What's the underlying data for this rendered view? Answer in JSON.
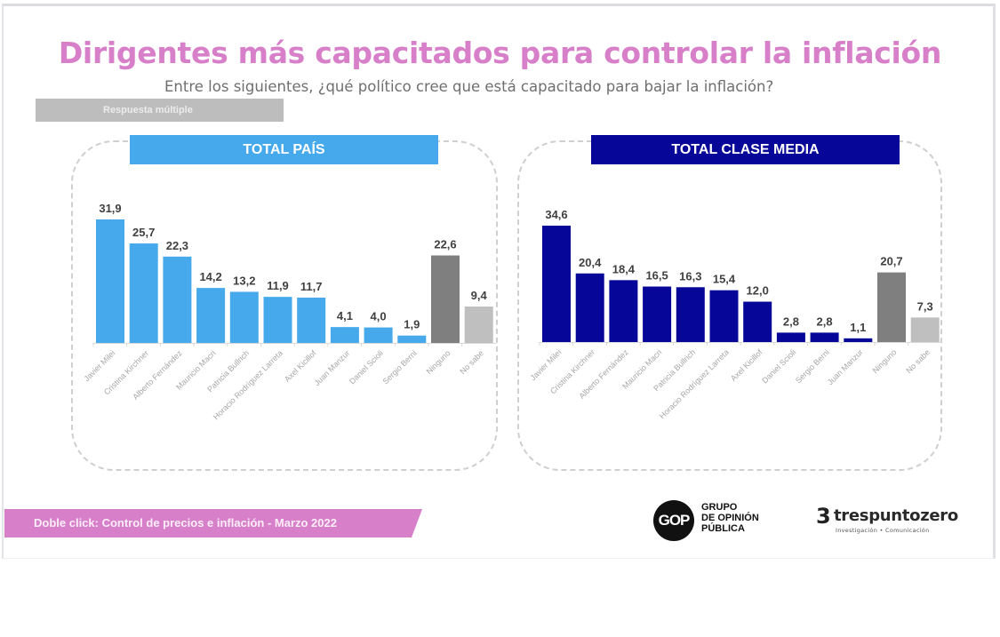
{
  "title": "Dirigentes más capacitados para controlar la inflación",
  "subtitle": "Entre los siguientes, ¿qué político cree que está capacitado para bajar la inflación?",
  "tag": "Respuesta múltiple",
  "footer": "Doble click: Control de precios e inflación -  Marzo 2022",
  "logos": {
    "gop_mark": "GOP",
    "gop_lines": [
      "GRUPO",
      "DE OPINIÓN",
      "PÚBLICA"
    ],
    "tpz_mark": "3",
    "tpz_name": "trespuntozero",
    "tpz_sub": "Investigación • Comunicación"
  },
  "colors": {
    "title": "#d77fc9",
    "footer_band": "#d77fc9",
    "pais_bar": "#45a9eb",
    "clase_media_bar": "#060698",
    "ninguno_bar": "#7f7f7f",
    "no_sabe_bar": "#bfbfbf",
    "value_label": "#404040",
    "category_label": "#a6a6a6"
  },
  "chart_data": [
    {
      "type": "bar",
      "title": "TOTAL PAÍS",
      "xlabel": "",
      "ylabel": "",
      "ylim": [
        0,
        31.9
      ],
      "grid": false,
      "legend": "none",
      "categories": [
        "Javier Milei",
        "Cristina Kirchner",
        "Alberto Fernández",
        "Mauricio Macri",
        "Patricia Bullrich",
        "Horacio Rodríguez Larreta",
        "Axel Kicillof",
        "Juan Manzur",
        "Daniel Scioli",
        "Sergio Berni",
        "Ninguno",
        "No sabe"
      ],
      "values": [
        31.9,
        25.7,
        22.3,
        14.2,
        13.2,
        11.9,
        11.7,
        4.1,
        4.0,
        1.9,
        22.6,
        9.4
      ],
      "value_labels": [
        "31,9",
        "25,7",
        "22,3",
        "14,2",
        "13,2",
        "11,9",
        "11,7",
        "4,1",
        "4,0",
        "1,9",
        "22,6",
        "9,4"
      ],
      "bar_colors": [
        "#45a9eb",
        "#45a9eb",
        "#45a9eb",
        "#45a9eb",
        "#45a9eb",
        "#45a9eb",
        "#45a9eb",
        "#45a9eb",
        "#45a9eb",
        "#45a9eb",
        "#7f7f7f",
        "#bfbfbf"
      ]
    },
    {
      "type": "bar",
      "title": "TOTAL CLASE MEDIA",
      "xlabel": "",
      "ylabel": "",
      "ylim": [
        0,
        34.6
      ],
      "grid": false,
      "legend": "none",
      "categories": [
        "Javier Milei",
        "Cristina Kirchner",
        "Alberto Fernández",
        "Mauricio Macri",
        "Patricia Bullrich",
        "Horacio Rodríguez Larreta",
        "Axel Kicillof",
        "Daniel Scioli",
        "Sergio Berni",
        "Juan Manzur",
        "Ninguno",
        "No sabe"
      ],
      "values": [
        34.6,
        20.4,
        18.4,
        16.5,
        16.3,
        15.4,
        12.0,
        2.8,
        2.8,
        1.1,
        20.7,
        7.3
      ],
      "value_labels": [
        "34,6",
        "20,4",
        "18,4",
        "16,5",
        "16,3",
        "15,4",
        "12,0",
        "2,8",
        "2,8",
        "1,1",
        "20,7",
        "7,3"
      ],
      "bar_colors": [
        "#060698",
        "#060698",
        "#060698",
        "#060698",
        "#060698",
        "#060698",
        "#060698",
        "#060698",
        "#060698",
        "#060698",
        "#7f7f7f",
        "#bfbfbf"
      ]
    }
  ]
}
